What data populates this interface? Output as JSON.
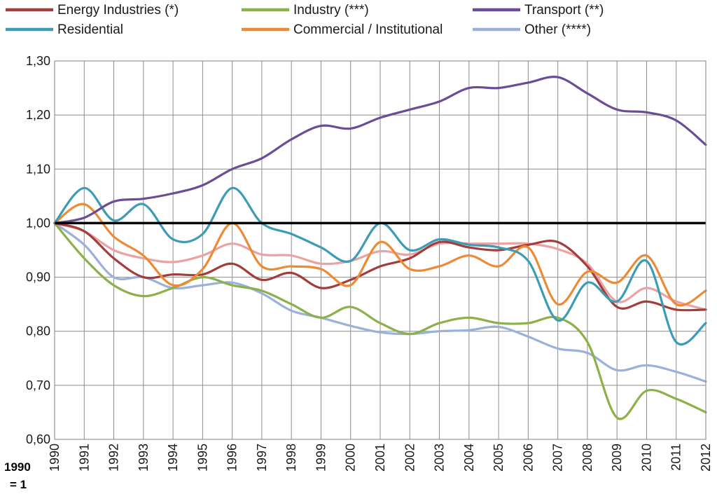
{
  "chart_data": {
    "type": "line",
    "title": "",
    "xlabel": "",
    "ylabel": "",
    "base_note_line1": "1990",
    "base_note_line2": "= 1",
    "x": [
      "1990",
      "1991",
      "1992",
      "1993",
      "1994",
      "1995",
      "1996",
      "1997",
      "1998",
      "1999",
      "2000",
      "2001",
      "2002",
      "2003",
      "2004",
      "2005",
      "2006",
      "2007",
      "2008",
      "2009",
      "2010",
      "2011",
      "2012"
    ],
    "ylim": [
      0.6,
      1.3
    ],
    "yticks": [
      "0,60",
      "0,70",
      "0,80",
      "0,90",
      "1,00",
      "1,10",
      "1,20",
      "1,30"
    ],
    "grid": true,
    "legend_position": "top",
    "reference_line": {
      "value": 1.0,
      "color": "#000000"
    },
    "series": [
      {
        "name": "Energy Industries (*)",
        "color": "#a33d3c",
        "values": [
          1.0,
          0.985,
          0.935,
          0.9,
          0.905,
          0.905,
          0.925,
          0.895,
          0.908,
          0.88,
          0.895,
          0.92,
          0.935,
          0.965,
          0.955,
          0.95,
          0.96,
          0.965,
          0.92,
          0.845,
          0.855,
          0.84,
          0.84
        ]
      },
      {
        "name": "Industry (***)",
        "color": "#8cb04a",
        "values": [
          1.0,
          0.935,
          0.885,
          0.865,
          0.88,
          0.9,
          0.885,
          0.875,
          0.85,
          0.825,
          0.845,
          0.815,
          0.795,
          0.815,
          0.825,
          0.815,
          0.815,
          0.825,
          0.78,
          0.64,
          0.69,
          0.675,
          0.65
        ]
      },
      {
        "name": "Transport (**)",
        "color": "#6b4c96",
        "values": [
          1.0,
          1.01,
          1.04,
          1.045,
          1.055,
          1.07,
          1.1,
          1.12,
          1.155,
          1.18,
          1.175,
          1.195,
          1.21,
          1.225,
          1.25,
          1.25,
          1.26,
          1.27,
          1.24,
          1.21,
          1.205,
          1.19,
          1.145
        ]
      },
      {
        "name": "Residential",
        "color": "#3d9cb5",
        "values": [
          1.0,
          1.065,
          1.005,
          1.035,
          0.97,
          0.98,
          1.065,
          1.0,
          0.98,
          0.955,
          0.93,
          1.0,
          0.95,
          0.97,
          0.96,
          0.955,
          0.93,
          0.82,
          0.89,
          0.855,
          0.93,
          0.78,
          0.815
        ]
      },
      {
        "name": "Commercial / Institutional",
        "color": "#ec8a35",
        "values": [
          1.0,
          1.035,
          0.975,
          0.94,
          0.885,
          0.915,
          1.0,
          0.92,
          0.92,
          0.915,
          0.885,
          0.965,
          0.915,
          0.92,
          0.94,
          0.92,
          0.955,
          0.85,
          0.91,
          0.89,
          0.94,
          0.85,
          0.875
        ]
      },
      {
        "name": "Other (****)",
        "color": "#9bb0db",
        "values": [
          1.0,
          0.96,
          0.9,
          0.9,
          0.88,
          0.885,
          0.89,
          0.87,
          0.838,
          0.825,
          0.81,
          0.798,
          0.795,
          0.8,
          0.802,
          0.808,
          0.79,
          0.768,
          0.76,
          0.728,
          0.737,
          0.725,
          0.707
        ]
      },
      {
        "name": "",
        "color": "#e8a3a2",
        "values": [
          1.0,
          0.985,
          0.95,
          0.935,
          0.928,
          0.94,
          0.962,
          0.942,
          0.94,
          0.925,
          0.93,
          0.948,
          0.942,
          0.962,
          0.962,
          0.962,
          0.962,
          0.952,
          0.925,
          0.855,
          0.88,
          0.855,
          0.84
        ]
      }
    ]
  }
}
